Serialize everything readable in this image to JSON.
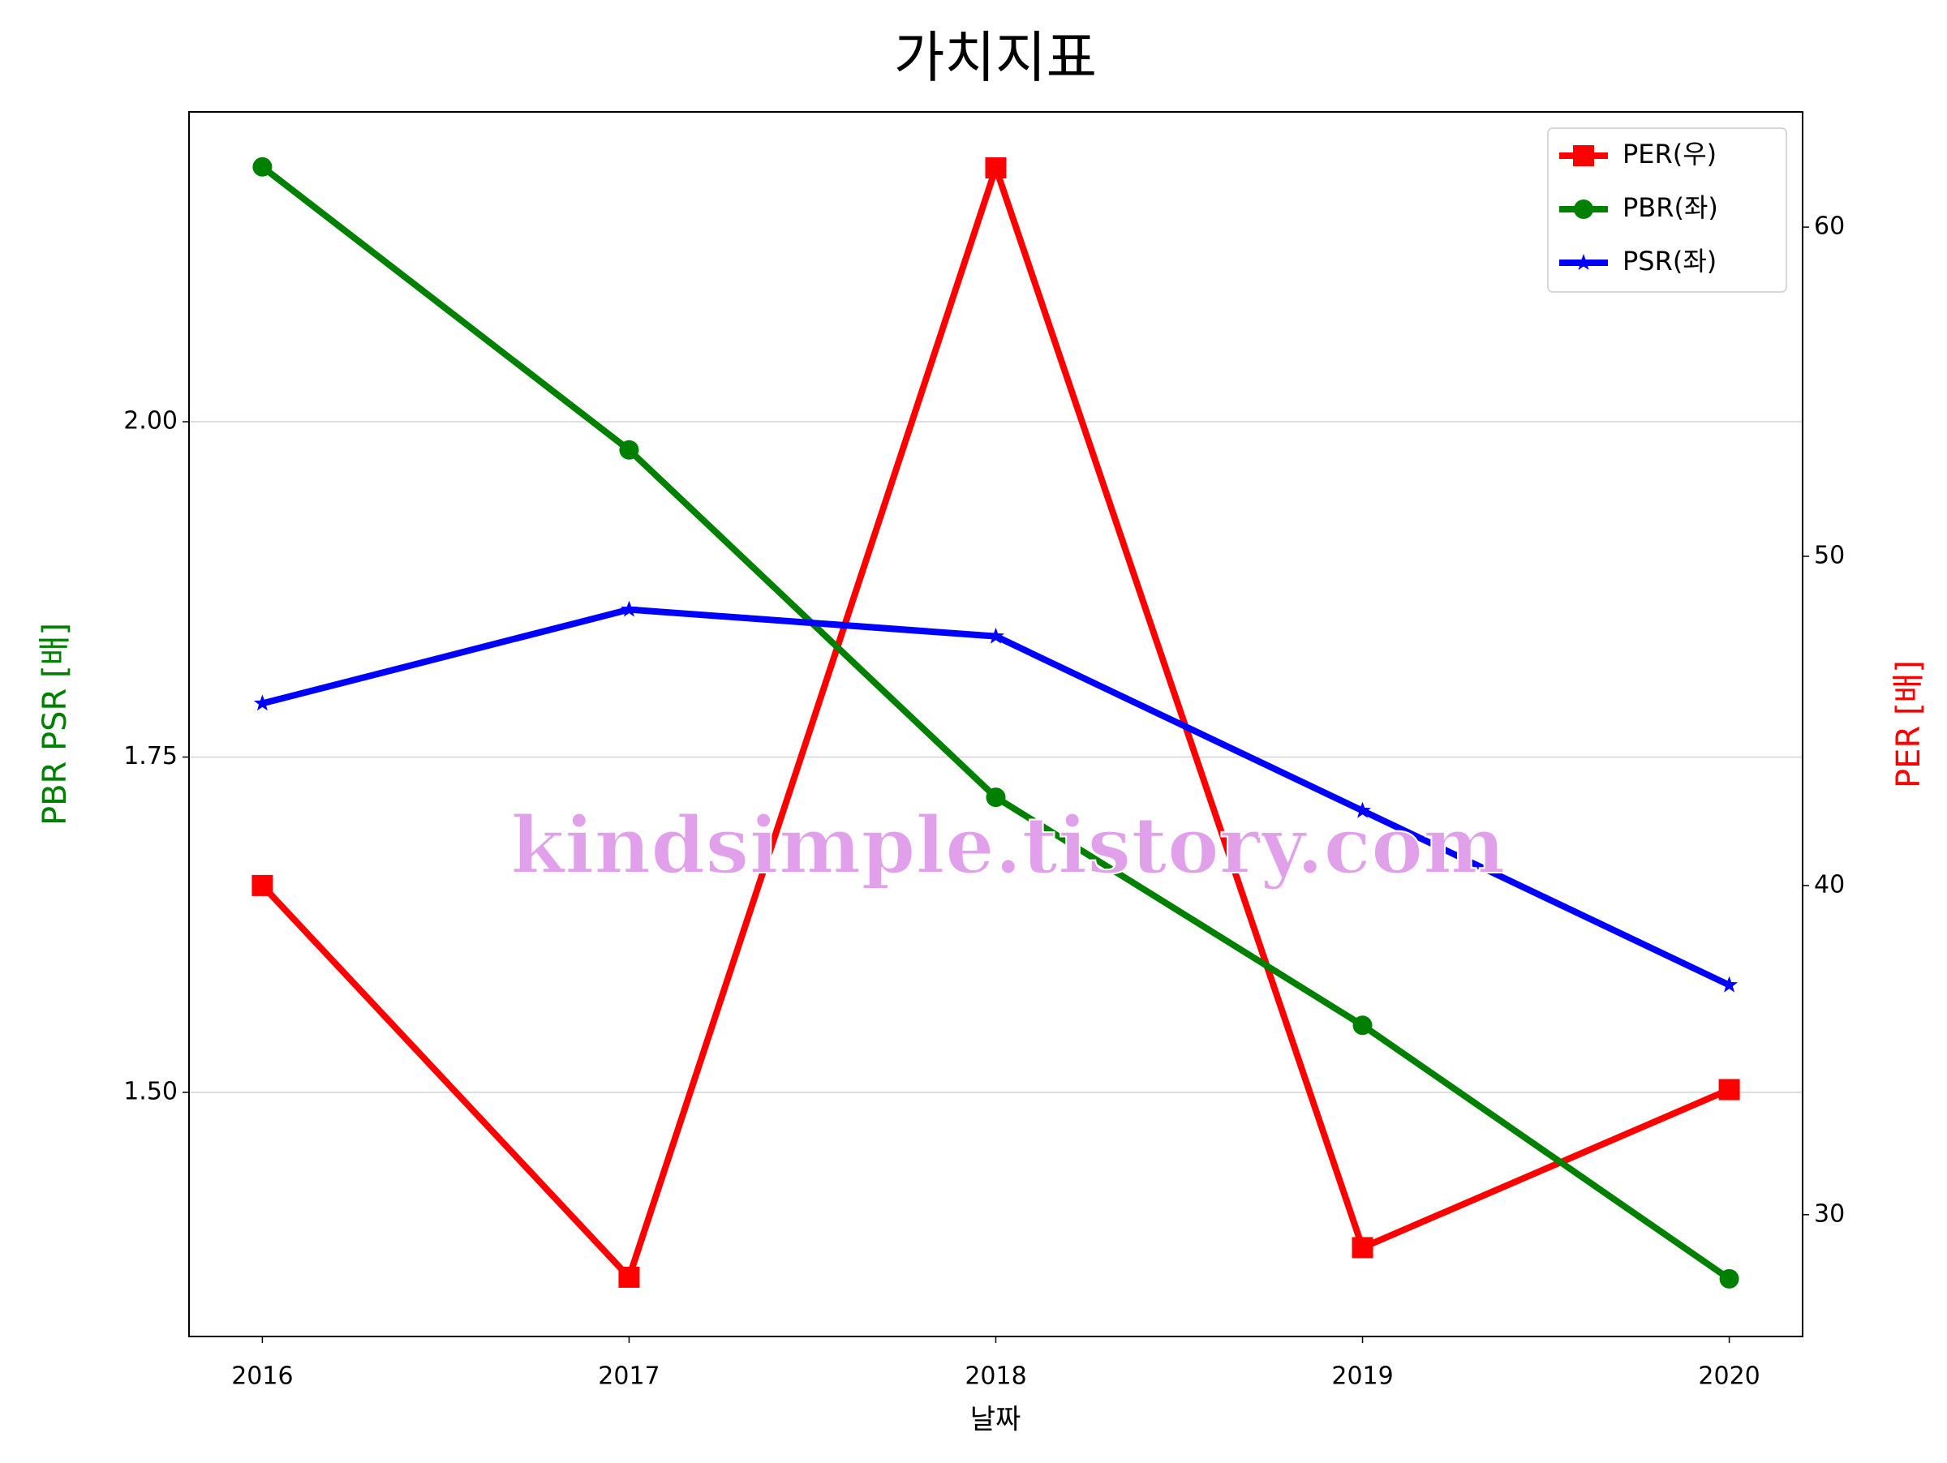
{
  "chart_data": {
    "type": "line",
    "title": "가치지표",
    "xlabel": "날짜",
    "ylabel": "PBR PSR [배]",
    "y2label": "PER [배]",
    "annotation": "kindsimple.tistory.com",
    "x": [
      2016,
      2017,
      2018,
      2019,
      2020
    ],
    "xlim": [
      2015.8,
      2020.2
    ],
    "xticks": [
      2016,
      2017,
      2018,
      2019,
      2020
    ],
    "ylim": [
      1.318,
      2.231
    ],
    "yticks": [
      {
        "value": 1.5,
        "label": "1.50"
      },
      {
        "value": 1.75,
        "label": "1.75"
      },
      {
        "value": 2.0,
        "label": "2.00"
      }
    ],
    "y2lim": [
      26.3,
      63.5
    ],
    "y2ticks": [
      30,
      40,
      50,
      60
    ],
    "grid": true,
    "legend": "upper right",
    "series": [
      {
        "name": "PER(우)",
        "color": "#ff0000",
        "marker": "square",
        "axis": "y2",
        "values": [
          40.0,
          28.1,
          61.8,
          29.0,
          33.8
        ]
      },
      {
        "name": "PBR(좌)",
        "color": "#008000",
        "marker": "circle",
        "values": [
          2.19,
          1.979,
          1.72,
          1.55,
          1.361
        ]
      },
      {
        "name": "PSR(좌)",
        "color": "#0000ff",
        "marker": "star",
        "values": [
          1.79,
          1.86,
          1.84,
          1.71,
          1.58
        ]
      }
    ]
  }
}
